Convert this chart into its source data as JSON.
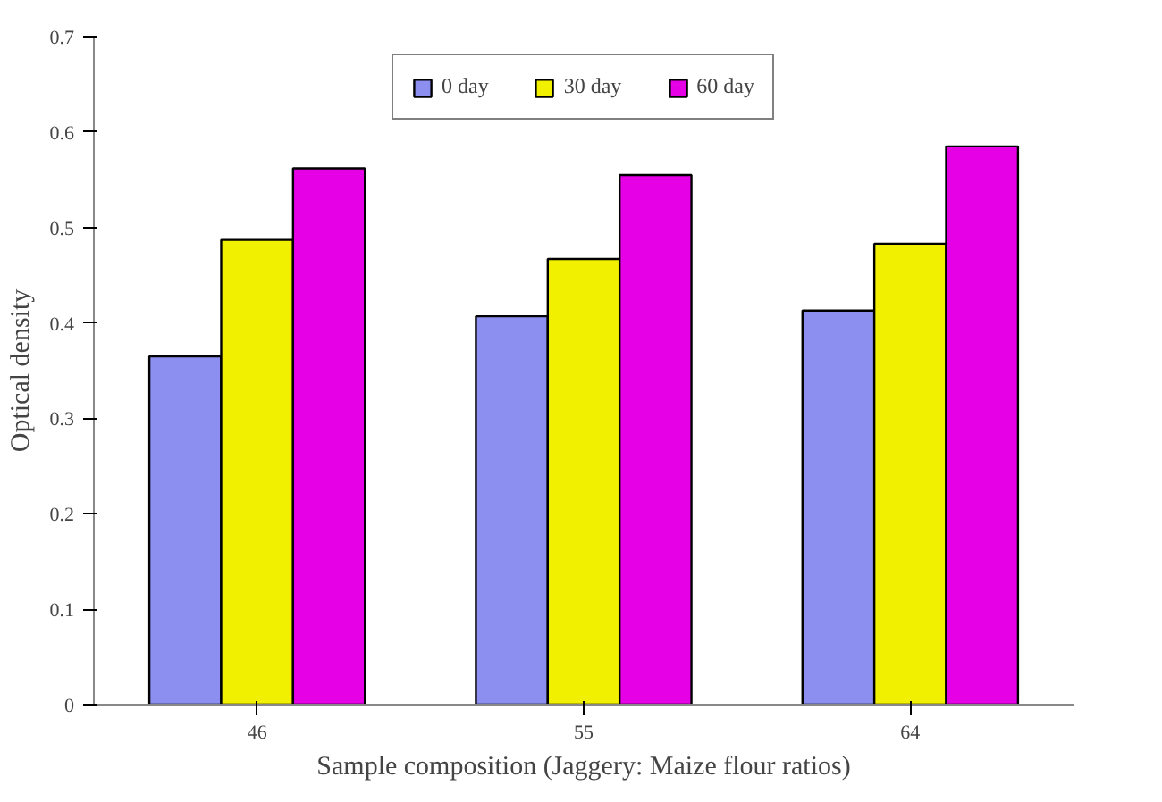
{
  "chart_data": {
    "type": "bar",
    "xlabel": "Sample composition (Jaggery: Maize flour ratios)",
    "ylabel": "Optical density",
    "categories": [
      "46",
      "55",
      "64"
    ],
    "series": [
      {
        "name": "0 day",
        "color": "#8c8ff0",
        "values": [
          0.365,
          0.407,
          0.413
        ]
      },
      {
        "name": "30 day",
        "color": "#f0f000",
        "values": [
          0.487,
          0.467,
          0.483
        ]
      },
      {
        "name": "60 day",
        "color": "#e600e6",
        "values": [
          0.562,
          0.555,
          0.585
        ]
      }
    ],
    "ylim": [
      0,
      0.7
    ],
    "yticks": [
      0,
      0.1,
      0.2,
      0.3,
      0.4,
      0.5,
      0.6,
      0.7
    ],
    "grid": false,
    "legend": "top"
  }
}
